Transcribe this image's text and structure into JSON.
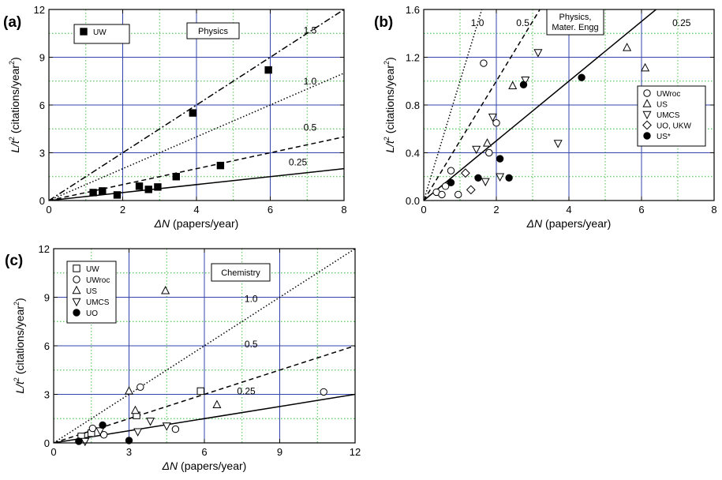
{
  "chart_data": [
    {
      "id": "a",
      "type": "scatter",
      "panel_label": "(a)",
      "xlabel_sym": "ΔN",
      "xlabel_rest": " (papers/year)",
      "ylabel_sym": "L/t",
      "ylabel_sup": "2",
      "ylabel_rest": " (citations/year",
      "ylabel_sup2": "2",
      "ylabel_close": ")",
      "xlim": [
        0,
        8
      ],
      "ylim": [
        0,
        12
      ],
      "xticks": [
        0,
        2,
        4,
        6,
        8
      ],
      "yticks": [
        0,
        3,
        6,
        9,
        12
      ],
      "xtick_labels": [
        "0",
        "2",
        "4",
        "6",
        "8"
      ],
      "ytick_labels": [
        "0",
        "3",
        "6",
        "9",
        "12"
      ],
      "blue_grid_x": [
        2,
        4,
        6
      ],
      "blue_grid_y": [
        3,
        6,
        9
      ],
      "green_grid_x": [
        1,
        3,
        5,
        7
      ],
      "green_grid_y": [
        1.5,
        4.5,
        7.5,
        10.5
      ],
      "annotation": "Physics",
      "legend_position": "top-left",
      "lines": [
        {
          "slope": 0.25,
          "label": "0.25",
          "style": "solid",
          "label_at": [
            6.5,
            2.2
          ]
        },
        {
          "slope": 0.5,
          "label": "0.5",
          "style": "dashed",
          "label_at": [
            6.9,
            4.4
          ]
        },
        {
          "slope": 1.0,
          "label": "1.0",
          "style": "dotted",
          "label_at": [
            6.9,
            7.3
          ]
        },
        {
          "slope": 1.5,
          "label": "1.5",
          "style": "dashdot",
          "label_at": [
            6.9,
            10.5
          ]
        }
      ],
      "series": [
        {
          "name": "UW",
          "marker": "square-filled",
          "points": [
            [
              1.2,
              0.5
            ],
            [
              1.45,
              0.6
            ],
            [
              1.85,
              0.35
            ],
            [
              2.45,
              0.9
            ],
            [
              2.7,
              0.7
            ],
            [
              2.95,
              0.85
            ],
            [
              3.45,
              1.5
            ],
            [
              3.9,
              5.5
            ],
            [
              4.65,
              2.2
            ],
            [
              5.95,
              8.2
            ]
          ]
        }
      ]
    },
    {
      "id": "b",
      "type": "scatter",
      "panel_label": "(b)",
      "xlabel_sym": "ΔN",
      "xlabel_rest": " (papers/year)",
      "ylabel_sym": "L/t",
      "ylabel_sup": "2",
      "ylabel_rest": " (citations/year",
      "ylabel_sup2": "2",
      "ylabel_close": ")",
      "xlim": [
        0,
        8
      ],
      "ylim": [
        0,
        1.6
      ],
      "xticks": [
        0,
        2,
        4,
        6,
        8
      ],
      "yticks": [
        0,
        0.4,
        0.8,
        1.2,
        1.6
      ],
      "xtick_labels": [
        "0",
        "2",
        "4",
        "6",
        "8"
      ],
      "ytick_labels": [
        "0.0",
        "0.4",
        "0.8",
        "1.2",
        "1.6"
      ],
      "blue_grid_x": [
        2,
        4,
        6
      ],
      "blue_grid_y": [
        0.4,
        0.8,
        1.2
      ],
      "green_grid_x": [
        1,
        3,
        5,
        7
      ],
      "green_grid_y": [
        0.2,
        0.6,
        1.0,
        1.4
      ],
      "annotation_lines": [
        "Physics,",
        "Mater. Engg"
      ],
      "legend_position": "right",
      "lines": [
        {
          "slope": 0.25,
          "label": "0.25",
          "style": "solid",
          "label_at": [
            6.85,
            1.46
          ]
        },
        {
          "slope": 0.5,
          "label": "0.5",
          "style": "dashed",
          "label_at": [
            2.55,
            1.46
          ]
        },
        {
          "slope": 1.0,
          "label": "1.0",
          "style": "dotted",
          "label_at": [
            1.3,
            1.46
          ]
        }
      ],
      "series": [
        {
          "name": "UWroc",
          "marker": "circle-open",
          "points": [
            [
              0.35,
              0.07
            ],
            [
              0.5,
              0.05
            ],
            [
              0.6,
              0.12
            ],
            [
              0.75,
              0.25
            ],
            [
              0.95,
              0.05
            ],
            [
              1.65,
              1.15
            ],
            [
              1.8,
              0.4
            ],
            [
              2.0,
              0.65
            ]
          ]
        },
        {
          "name": "US",
          "marker": "triangle-up-open",
          "points": [
            [
              1.75,
              0.48
            ],
            [
              2.45,
              0.96
            ],
            [
              5.6,
              1.28
            ],
            [
              6.1,
              1.11
            ]
          ]
        },
        {
          "name": "UMCS",
          "marker": "triangle-down-open",
          "points": [
            [
              1.45,
              0.43
            ],
            [
              1.7,
              0.16
            ],
            [
              1.9,
              0.7
            ],
            [
              2.1,
              0.2
            ],
            [
              2.8,
              1.01
            ],
            [
              3.15,
              1.24
            ],
            [
              3.7,
              0.48
            ]
          ]
        },
        {
          "name": "UO, UKW",
          "marker": "diamond-open",
          "points": [
            [
              1.15,
              0.23
            ],
            [
              1.3,
              0.09
            ]
          ]
        },
        {
          "name": "US*",
          "marker": "circle-filled",
          "points": [
            [
              0.75,
              0.15
            ],
            [
              1.5,
              0.19
            ],
            [
              2.1,
              0.35
            ],
            [
              2.35,
              0.19
            ],
            [
              2.75,
              0.97
            ],
            [
              4.35,
              1.03
            ]
          ]
        }
      ]
    },
    {
      "id": "c",
      "type": "scatter",
      "panel_label": "(c)",
      "xlabel_sym": "ΔN",
      "xlabel_rest": " (papers/year)",
      "ylabel_sym": "L/t",
      "ylabel_sup": "2",
      "ylabel_rest": " (citations/year",
      "ylabel_sup2": "2",
      "ylabel_close": ")",
      "xlim": [
        0,
        12
      ],
      "ylim": [
        0,
        12
      ],
      "xticks": [
        0,
        3,
        6,
        9,
        12
      ],
      "yticks": [
        0,
        3,
        6,
        9,
        12
      ],
      "xtick_labels": [
        "0",
        "3",
        "6",
        "9",
        "12"
      ],
      "ytick_labels": [
        "0",
        "3",
        "6",
        "9",
        "12"
      ],
      "blue_grid_x": [
        3,
        6,
        9
      ],
      "blue_grid_y": [
        3,
        6,
        9
      ],
      "green_grid_x": [
        1.5,
        4.5,
        7.5,
        10.5
      ],
      "green_grid_y": [
        1.5,
        4.5,
        7.5,
        10.5
      ],
      "annotation": "Chemistry",
      "legend_position": "top-left",
      "lines": [
        {
          "slope": 0.25,
          "label": "0.25",
          "style": "solid",
          "label_at": [
            7.3,
            3.0
          ]
        },
        {
          "slope": 0.5,
          "label": "0.5",
          "style": "dashed",
          "label_at": [
            7.6,
            5.9
          ]
        },
        {
          "slope": 1.0,
          "label": "1.0",
          "style": "dotted",
          "label_at": [
            7.6,
            8.7
          ]
        }
      ],
      "series": [
        {
          "name": "UW",
          "marker": "square-open",
          "points": [
            [
              1.1,
              0.4
            ],
            [
              1.5,
              0.6
            ],
            [
              3.3,
              1.7
            ],
            [
              5.85,
              3.2
            ]
          ]
        },
        {
          "name": "UWroc",
          "marker": "circle-open",
          "points": [
            [
              1.55,
              0.9
            ],
            [
              2.0,
              0.5
            ],
            [
              3.45,
              3.45
            ],
            [
              4.85,
              0.85
            ],
            [
              10.75,
              3.15
            ]
          ]
        },
        {
          "name": "US",
          "marker": "triangle-up-open",
          "points": [
            [
              3.0,
              3.2
            ],
            [
              3.25,
              2.0
            ],
            [
              4.45,
              9.4
            ],
            [
              6.5,
              2.35
            ]
          ]
        },
        {
          "name": "UMCS",
          "marker": "triangle-down-open",
          "points": [
            [
              1.25,
              0.1
            ],
            [
              1.85,
              0.75
            ],
            [
              3.35,
              0.7
            ],
            [
              3.85,
              1.35
            ],
            [
              4.5,
              1.05
            ]
          ]
        },
        {
          "name": "UO",
          "marker": "circle-filled",
          "points": [
            [
              1.0,
              0.1
            ],
            [
              1.95,
              1.1
            ],
            [
              3.0,
              0.15
            ]
          ]
        }
      ]
    }
  ]
}
